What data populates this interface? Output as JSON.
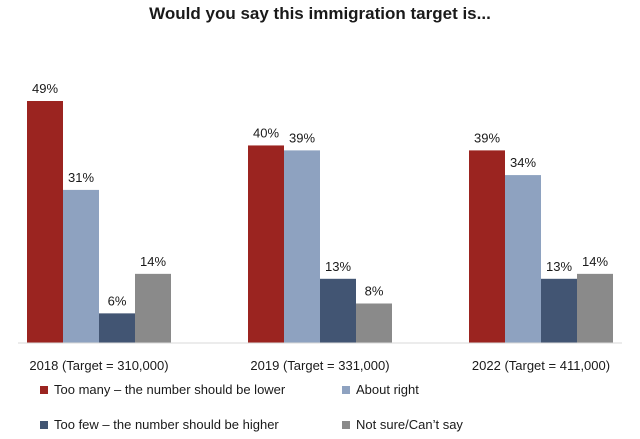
{
  "chart_data": {
    "type": "bar",
    "title": "Would you say this immigration target is...",
    "categories": [
      "2018 (Target = 310,000)",
      "2019 (Target = 331,000)",
      "2022 (Target = 411,000)"
    ],
    "series": [
      {
        "name": "Too many – the number should be lower",
        "color": "#9b2420",
        "values": [
          49,
          40,
          39
        ]
      },
      {
        "name": "About right",
        "color": "#8ea2c0",
        "values": [
          31,
          39,
          34
        ]
      },
      {
        "name": "Too few – the number should be higher",
        "color": "#425573",
        "values": [
          6,
          13,
          13
        ]
      },
      {
        "name": "Not sure/Can’t say",
        "color": "#8a8a8a",
        "values": [
          14,
          8,
          14
        ]
      }
    ],
    "value_suffix": "%",
    "ylim": [
      0,
      50
    ],
    "grid": false,
    "legend_position": "bottom"
  }
}
